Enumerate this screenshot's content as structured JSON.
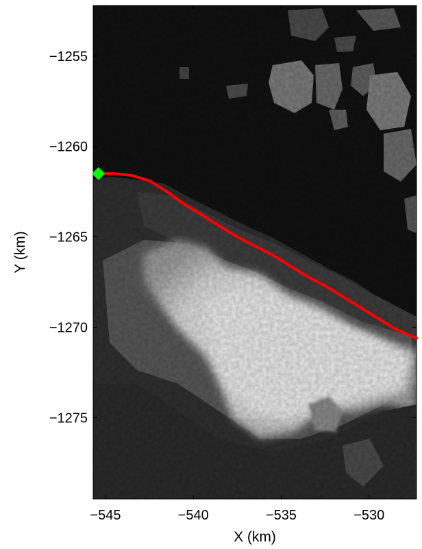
{
  "chart_data": {
    "type": "line",
    "background": "grayscale satellite image of glacier terminus and sea ice",
    "xlabel": "X (km)",
    "ylabel": "Y (km)",
    "xlim": [
      -545.7,
      -527.3
    ],
    "ylim": [
      -1279.5,
      -1252.2
    ],
    "xticks": [
      -545,
      -540,
      -535,
      -530
    ],
    "yticks": [
      -1255,
      -1260,
      -1265,
      -1270,
      -1275
    ],
    "xtick_labels": [
      "−545",
      "−540",
      "−535",
      "−530"
    ],
    "ytick_labels": [
      "−1255",
      "−1260",
      "−1265",
      "−1270",
      "−1275"
    ],
    "grid": false,
    "series": [
      {
        "color": "#ff0000",
        "x": [
          -545.4,
          -544.5,
          -543.5,
          -542.5,
          -541.5,
          -540.5,
          -539.5,
          -538.5,
          -537.5,
          -536.5,
          -535.5,
          -534.5,
          -533.5,
          -532.5,
          -531.5,
          -530.5,
          -529.5,
          -528.5,
          -527.3
        ],
        "y": [
          -1261.5,
          -1261.5,
          -1261.6,
          -1261.9,
          -1262.5,
          -1263.2,
          -1263.8,
          -1264.4,
          -1265.0,
          -1265.5,
          -1266.0,
          -1266.6,
          -1267.2,
          -1267.7,
          -1268.3,
          -1268.9,
          -1269.5,
          -1270.1,
          -1270.6
        ]
      }
    ],
    "start_marker": {
      "x": -545.4,
      "y": -1261.5,
      "color": "#00ff00",
      "shape": "diamond"
    }
  }
}
